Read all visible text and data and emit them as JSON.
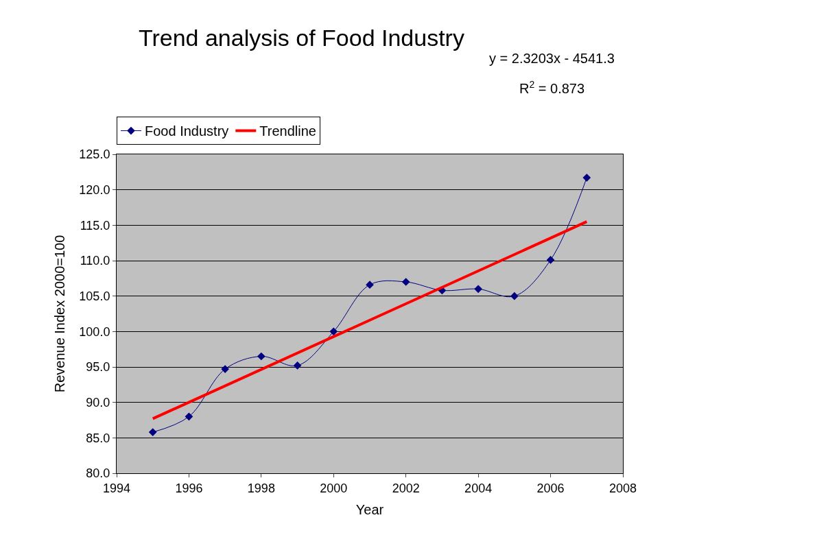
{
  "chart_data": {
    "type": "line",
    "title": "Trend analysis of Food Industry",
    "xlabel": "Year",
    "ylabel": "Revenue Index 2000=100",
    "x": [
      1995,
      1996,
      1997,
      1998,
      1999,
      2000,
      2001,
      2002,
      2003,
      2004,
      2005,
      2006,
      2007
    ],
    "series": [
      {
        "name": "Food Industry",
        "color": "#000080",
        "marker": "diamond",
        "values": [
          85.8,
          88.0,
          94.7,
          96.5,
          95.2,
          100.0,
          106.6,
          107.0,
          105.8,
          106.0,
          105.0,
          110.1,
          121.7
        ]
      },
      {
        "name": "Trendline",
        "color": "#ff0000",
        "marker": "none",
        "x": [
          1995,
          2007
        ],
        "values": [
          87.7,
          115.5
        ]
      }
    ],
    "xlim": [
      1994,
      2008
    ],
    "xticks": [
      1994,
      1996,
      1998,
      2000,
      2002,
      2004,
      2006,
      2008
    ],
    "ylim": [
      80,
      125
    ],
    "yticks": [
      {
        "value": 80,
        "label": "80.0"
      },
      {
        "value": 85,
        "label": "85.0"
      },
      {
        "value": 90,
        "label": "90.0"
      },
      {
        "value": 95,
        "label": "95.0"
      },
      {
        "value": 100,
        "label": "100.0"
      },
      {
        "value": 105,
        "label": "105.0"
      },
      {
        "value": 110,
        "label": "110.0"
      },
      {
        "value": 115,
        "label": "115.0"
      },
      {
        "value": 120,
        "label": "120.0"
      },
      {
        "value": 125,
        "label": "125.0"
      }
    ],
    "grid": "y",
    "legend": "top left",
    "annotations": [
      "y = 2.3203x - 4541.3",
      "R$^{2}$ = 0.873"
    ]
  }
}
